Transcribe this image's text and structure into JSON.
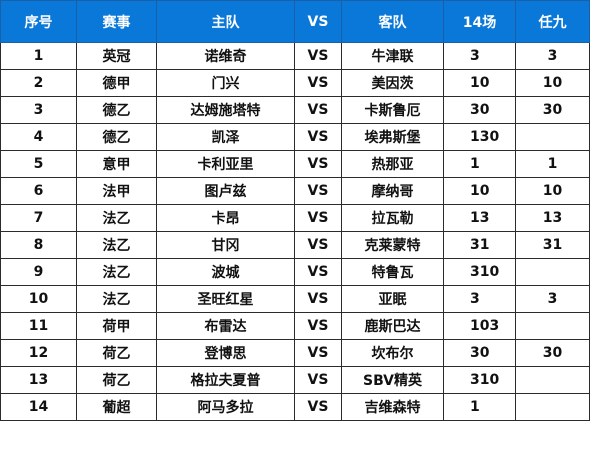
{
  "headers": [
    "序号",
    "赛事",
    "主队",
    "VS",
    "客队",
    "14场",
    "任九"
  ],
  "rows": [
    {
      "no": "1",
      "league": "英冠",
      "home": "诺维奇",
      "vs": "VS",
      "away": "牛津联",
      "r14": "3",
      "r9": "3"
    },
    {
      "no": "2",
      "league": "德甲",
      "home": "门兴",
      "vs": "VS",
      "away": "美因茨",
      "r14": "10",
      "r9": "10"
    },
    {
      "no": "3",
      "league": "德乙",
      "home": "达姆施塔特",
      "vs": "VS",
      "away": "卡斯鲁厄",
      "r14": "30",
      "r9": "30"
    },
    {
      "no": "4",
      "league": "德乙",
      "home": "凯泽",
      "vs": "VS",
      "away": "埃弗斯堡",
      "r14": "130",
      "r9": ""
    },
    {
      "no": "5",
      "league": "意甲",
      "home": "卡利亚里",
      "vs": "VS",
      "away": "热那亚",
      "r14": "1",
      "r9": "1"
    },
    {
      "no": "6",
      "league": "法甲",
      "home": "图卢兹",
      "vs": "VS",
      "away": "摩纳哥",
      "r14": "10",
      "r9": "10"
    },
    {
      "no": "7",
      "league": "法乙",
      "home": "卡昂",
      "vs": "VS",
      "away": "拉瓦勒",
      "r14": "13",
      "r9": "13"
    },
    {
      "no": "8",
      "league": "法乙",
      "home": "甘冈",
      "vs": "VS",
      "away": "克莱蒙特",
      "r14": "31",
      "r9": "31"
    },
    {
      "no": "9",
      "league": "法乙",
      "home": "波城",
      "vs": "VS",
      "away": "特鲁瓦",
      "r14": "310",
      "r9": ""
    },
    {
      "no": "10",
      "league": "法乙",
      "home": "圣旺红星",
      "vs": "VS",
      "away": "亚眠",
      "r14": "3",
      "r9": "3"
    },
    {
      "no": "11",
      "league": "荷甲",
      "home": "布雷达",
      "vs": "VS",
      "away": "鹿斯巴达",
      "r14": "103",
      "r9": ""
    },
    {
      "no": "12",
      "league": "荷乙",
      "home": "登博思",
      "vs": "VS",
      "away": "坎布尔",
      "r14": "30",
      "r9": "30"
    },
    {
      "no": "13",
      "league": "荷乙",
      "home": "格拉夫夏普",
      "vs": "VS",
      "away": "SBV精英",
      "r14": "310",
      "r9": ""
    },
    {
      "no": "14",
      "league": "葡超",
      "home": "阿马多拉",
      "vs": "VS",
      "away": "吉维森特",
      "r14": "1",
      "r9": ""
    }
  ],
  "colors": {
    "header_bg": "#0a78d8",
    "header_text": "#ffffff",
    "border": "#2b2b2b"
  }
}
